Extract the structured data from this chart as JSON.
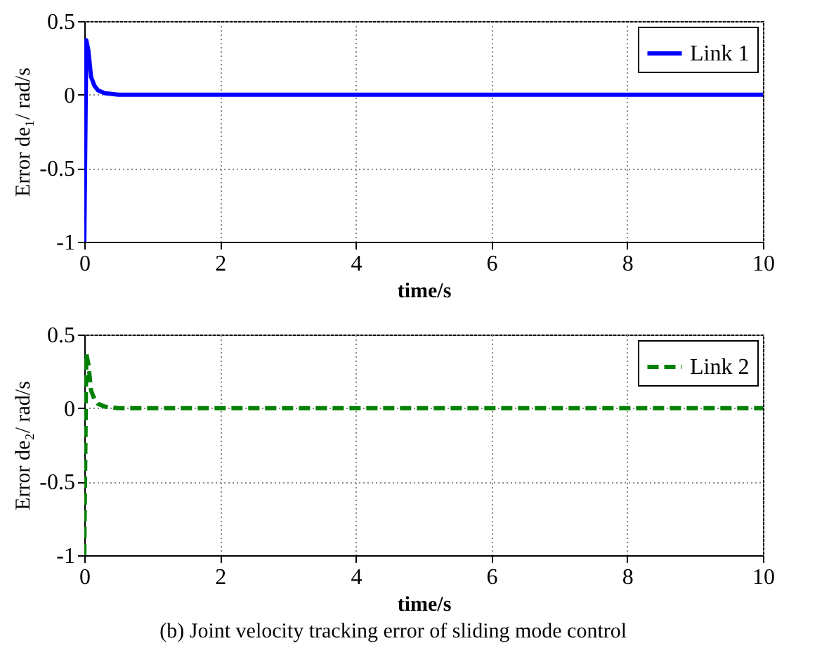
{
  "chart_data": [
    {
      "type": "line",
      "xlabel": "time/s",
      "ylabel": "Error de₁/ rad/s",
      "xlim": [
        0,
        10
      ],
      "ylim": [
        -1,
        0.5
      ],
      "xticks": [
        0,
        2,
        4,
        6,
        8,
        10
      ],
      "yticks": [
        -1,
        -0.5,
        0,
        0.5
      ],
      "grid": true,
      "legend": "top right",
      "line_style": "solid",
      "series": [
        {
          "name": "Link 1",
          "color": "#0000ff",
          "x": [
            0,
            0.03,
            0.06,
            0.1,
            0.15,
            0.2,
            0.3,
            0.5,
            1,
            2,
            4,
            6,
            8,
            10
          ],
          "values": [
            -1,
            0.37,
            0.3,
            0.12,
            0.06,
            0.03,
            0.01,
            0,
            0,
            0,
            0,
            0,
            0,
            0
          ]
        }
      ]
    },
    {
      "type": "line",
      "xlabel": "time/s",
      "ylabel": "Error de₂/ rad/s",
      "xlim": [
        0,
        10
      ],
      "ylim": [
        -1,
        0.5
      ],
      "xticks": [
        0,
        2,
        4,
        6,
        8,
        10
      ],
      "yticks": [
        -1,
        -0.5,
        0,
        0.5
      ],
      "grid": true,
      "legend": "top right",
      "line_style": "dashed",
      "annotations": [
        "(b) Joint velocity tracking error of sliding mode control"
      ],
      "series": [
        {
          "name": "Link 2",
          "color": "#008000",
          "x": [
            0,
            0.03,
            0.06,
            0.1,
            0.15,
            0.2,
            0.3,
            0.5,
            1,
            2,
            4,
            6,
            8,
            10
          ],
          "values": [
            -1,
            0.37,
            0.3,
            0.12,
            0.06,
            0.03,
            0.01,
            0,
            0,
            0,
            0,
            0,
            0,
            0
          ]
        }
      ]
    }
  ]
}
